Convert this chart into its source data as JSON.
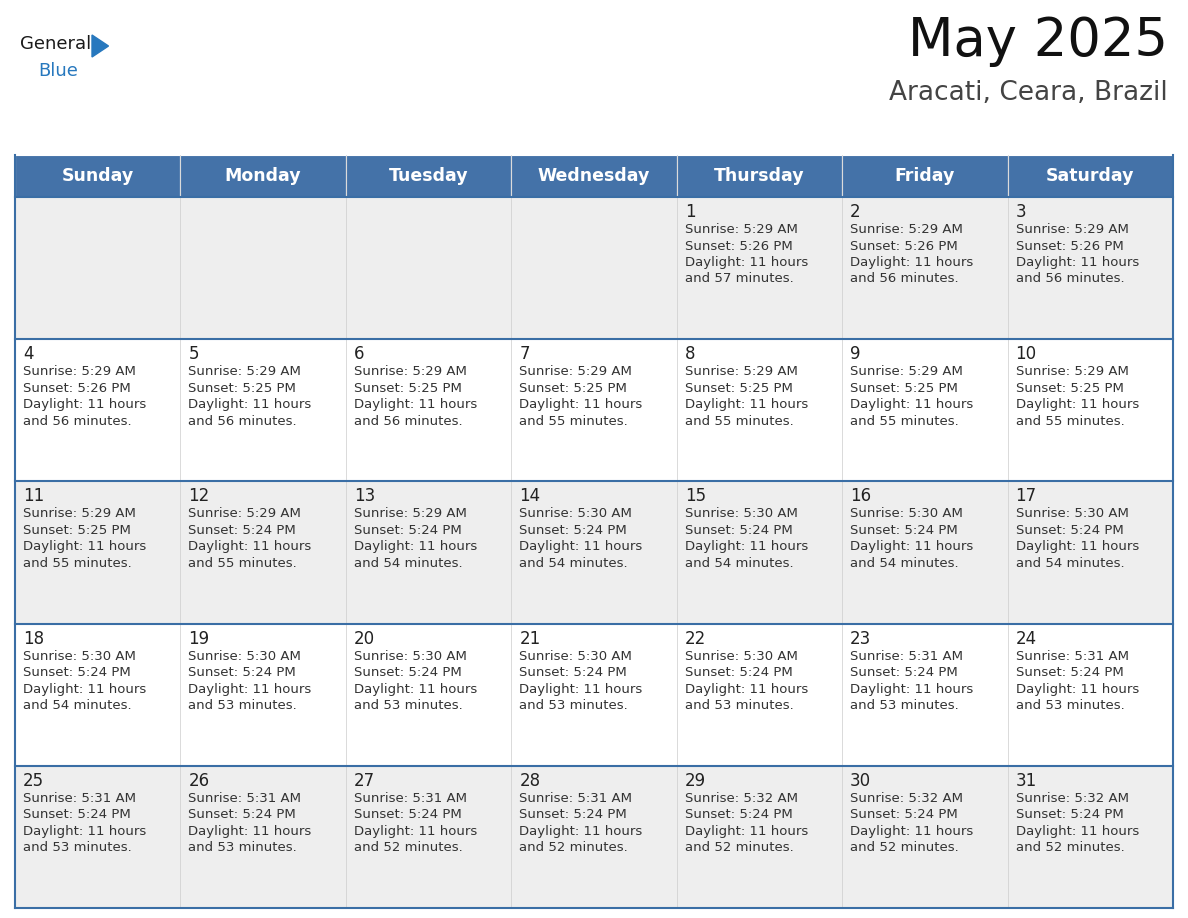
{
  "title": "May 2025",
  "subtitle": "Aracati, Ceara, Brazil",
  "header_bg": "#4472a8",
  "header_text": "#ffffff",
  "weekdays": [
    "Sunday",
    "Monday",
    "Tuesday",
    "Wednesday",
    "Thursday",
    "Friday",
    "Saturday"
  ],
  "row1_bg": "#eeeeee",
  "row2_bg": "#ffffff",
  "line_color": "#3a6ea5",
  "day_number_color": "#222222",
  "cell_text_color": "#333333",
  "logo_general_color": "#1a1a1a",
  "logo_blue_color": "#2778be",
  "calendar": [
    [
      null,
      null,
      null,
      null,
      {
        "day": 1,
        "sunrise": "5:29 AM",
        "sunset": "5:26 PM",
        "daylight_h": "11 hours",
        "daylight_m": "and 57 minutes."
      },
      {
        "day": 2,
        "sunrise": "5:29 AM",
        "sunset": "5:26 PM",
        "daylight_h": "11 hours",
        "daylight_m": "and 56 minutes."
      },
      {
        "day": 3,
        "sunrise": "5:29 AM",
        "sunset": "5:26 PM",
        "daylight_h": "11 hours",
        "daylight_m": "and 56 minutes."
      }
    ],
    [
      {
        "day": 4,
        "sunrise": "5:29 AM",
        "sunset": "5:26 PM",
        "daylight_h": "11 hours",
        "daylight_m": "and 56 minutes."
      },
      {
        "day": 5,
        "sunrise": "5:29 AM",
        "sunset": "5:25 PM",
        "daylight_h": "11 hours",
        "daylight_m": "and 56 minutes."
      },
      {
        "day": 6,
        "sunrise": "5:29 AM",
        "sunset": "5:25 PM",
        "daylight_h": "11 hours",
        "daylight_m": "and 56 minutes."
      },
      {
        "day": 7,
        "sunrise": "5:29 AM",
        "sunset": "5:25 PM",
        "daylight_h": "11 hours",
        "daylight_m": "and 55 minutes."
      },
      {
        "day": 8,
        "sunrise": "5:29 AM",
        "sunset": "5:25 PM",
        "daylight_h": "11 hours",
        "daylight_m": "and 55 minutes."
      },
      {
        "day": 9,
        "sunrise": "5:29 AM",
        "sunset": "5:25 PM",
        "daylight_h": "11 hours",
        "daylight_m": "and 55 minutes."
      },
      {
        "day": 10,
        "sunrise": "5:29 AM",
        "sunset": "5:25 PM",
        "daylight_h": "11 hours",
        "daylight_m": "and 55 minutes."
      }
    ],
    [
      {
        "day": 11,
        "sunrise": "5:29 AM",
        "sunset": "5:25 PM",
        "daylight_h": "11 hours",
        "daylight_m": "and 55 minutes."
      },
      {
        "day": 12,
        "sunrise": "5:29 AM",
        "sunset": "5:24 PM",
        "daylight_h": "11 hours",
        "daylight_m": "and 55 minutes."
      },
      {
        "day": 13,
        "sunrise": "5:29 AM",
        "sunset": "5:24 PM",
        "daylight_h": "11 hours",
        "daylight_m": "and 54 minutes."
      },
      {
        "day": 14,
        "sunrise": "5:30 AM",
        "sunset": "5:24 PM",
        "daylight_h": "11 hours",
        "daylight_m": "and 54 minutes."
      },
      {
        "day": 15,
        "sunrise": "5:30 AM",
        "sunset": "5:24 PM",
        "daylight_h": "11 hours",
        "daylight_m": "and 54 minutes."
      },
      {
        "day": 16,
        "sunrise": "5:30 AM",
        "sunset": "5:24 PM",
        "daylight_h": "11 hours",
        "daylight_m": "and 54 minutes."
      },
      {
        "day": 17,
        "sunrise": "5:30 AM",
        "sunset": "5:24 PM",
        "daylight_h": "11 hours",
        "daylight_m": "and 54 minutes."
      }
    ],
    [
      {
        "day": 18,
        "sunrise": "5:30 AM",
        "sunset": "5:24 PM",
        "daylight_h": "11 hours",
        "daylight_m": "and 54 minutes."
      },
      {
        "day": 19,
        "sunrise": "5:30 AM",
        "sunset": "5:24 PM",
        "daylight_h": "11 hours",
        "daylight_m": "and 53 minutes."
      },
      {
        "day": 20,
        "sunrise": "5:30 AM",
        "sunset": "5:24 PM",
        "daylight_h": "11 hours",
        "daylight_m": "and 53 minutes."
      },
      {
        "day": 21,
        "sunrise": "5:30 AM",
        "sunset": "5:24 PM",
        "daylight_h": "11 hours",
        "daylight_m": "and 53 minutes."
      },
      {
        "day": 22,
        "sunrise": "5:30 AM",
        "sunset": "5:24 PM",
        "daylight_h": "11 hours",
        "daylight_m": "and 53 minutes."
      },
      {
        "day": 23,
        "sunrise": "5:31 AM",
        "sunset": "5:24 PM",
        "daylight_h": "11 hours",
        "daylight_m": "and 53 minutes."
      },
      {
        "day": 24,
        "sunrise": "5:31 AM",
        "sunset": "5:24 PM",
        "daylight_h": "11 hours",
        "daylight_m": "and 53 minutes."
      }
    ],
    [
      {
        "day": 25,
        "sunrise": "5:31 AM",
        "sunset": "5:24 PM",
        "daylight_h": "11 hours",
        "daylight_m": "and 53 minutes."
      },
      {
        "day": 26,
        "sunrise": "5:31 AM",
        "sunset": "5:24 PM",
        "daylight_h": "11 hours",
        "daylight_m": "and 53 minutes."
      },
      {
        "day": 27,
        "sunrise": "5:31 AM",
        "sunset": "5:24 PM",
        "daylight_h": "11 hours",
        "daylight_m": "and 52 minutes."
      },
      {
        "day": 28,
        "sunrise": "5:31 AM",
        "sunset": "5:24 PM",
        "daylight_h": "11 hours",
        "daylight_m": "and 52 minutes."
      },
      {
        "day": 29,
        "sunrise": "5:32 AM",
        "sunset": "5:24 PM",
        "daylight_h": "11 hours",
        "daylight_m": "and 52 minutes."
      },
      {
        "day": 30,
        "sunrise": "5:32 AM",
        "sunset": "5:24 PM",
        "daylight_h": "11 hours",
        "daylight_m": "and 52 minutes."
      },
      {
        "day": 31,
        "sunrise": "5:32 AM",
        "sunset": "5:24 PM",
        "daylight_h": "11 hours",
        "daylight_m": "and 52 minutes."
      }
    ]
  ]
}
